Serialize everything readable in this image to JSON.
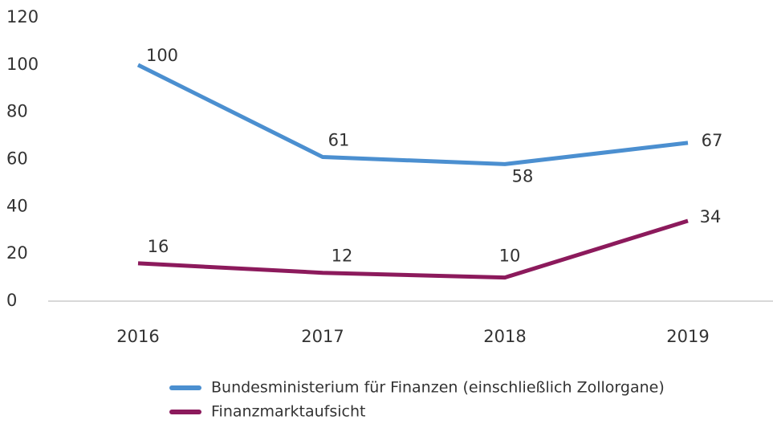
{
  "chart_data": {
    "type": "line",
    "categories": [
      "2016",
      "2017",
      "2018",
      "2019"
    ],
    "series": [
      {
        "name": "Bundesministerium für Finanzen (einschließlich Zollorgane)",
        "color": "#4b8fd0",
        "values": [
          100,
          61,
          58,
          67
        ]
      },
      {
        "name": "Finanzmarktaufsicht",
        "color": "#8c1a5c",
        "values": [
          16,
          12,
          10,
          34
        ]
      }
    ],
    "ylim": [
      0,
      120
    ],
    "yticks": [
      0,
      20,
      40,
      60,
      80,
      100,
      120
    ],
    "grid": false,
    "legend": "bottom"
  }
}
